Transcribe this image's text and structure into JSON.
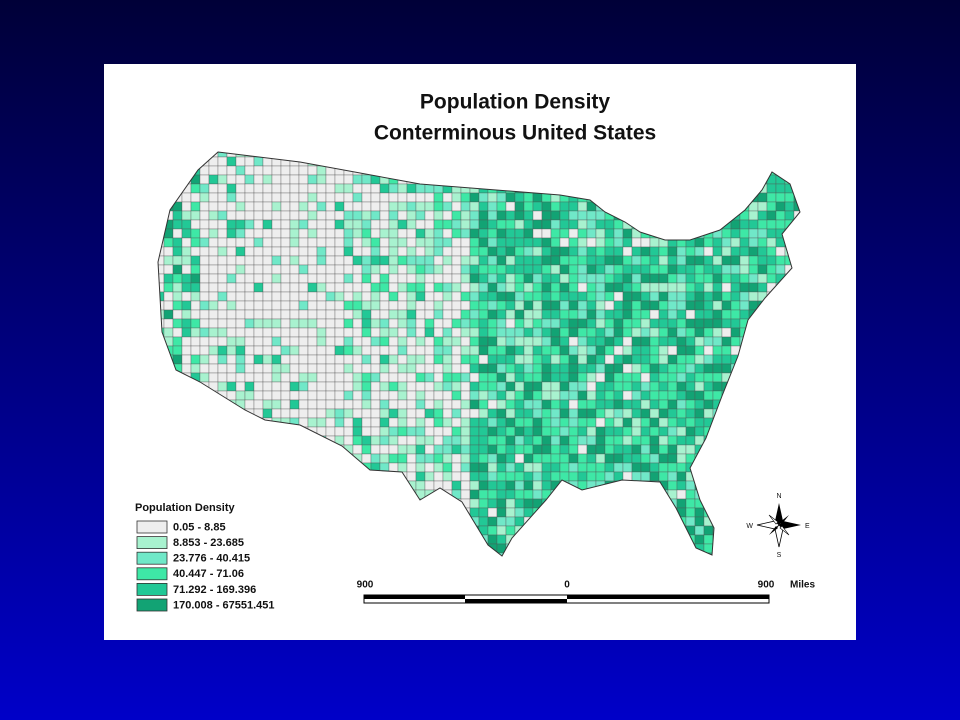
{
  "map": {
    "title_lines": [
      "Population Density",
      "Conterminous United States"
    ],
    "legend": {
      "title": "Population Density",
      "items": [
        {
          "label": "0.05 - 8.85",
          "color": "#eeeeee"
        },
        {
          "label": "8.853 - 23.685",
          "color": "#a8f2cf"
        },
        {
          "label": "23.776 - 40.415",
          "color": "#70e8c8"
        },
        {
          "label": "40.447 - 71.06",
          "color": "#3ee8a6"
        },
        {
          "label": "71.292 - 169.396",
          "color": "#22c896"
        },
        {
          "label": "170.008 - 67551.451",
          "color": "#12a374"
        }
      ]
    },
    "compass": {
      "n": "N",
      "s": "S",
      "e": "E",
      "w": "W"
    },
    "scale": {
      "left": "900",
      "middle": "0",
      "right": "900",
      "unit": "Miles"
    }
  }
}
